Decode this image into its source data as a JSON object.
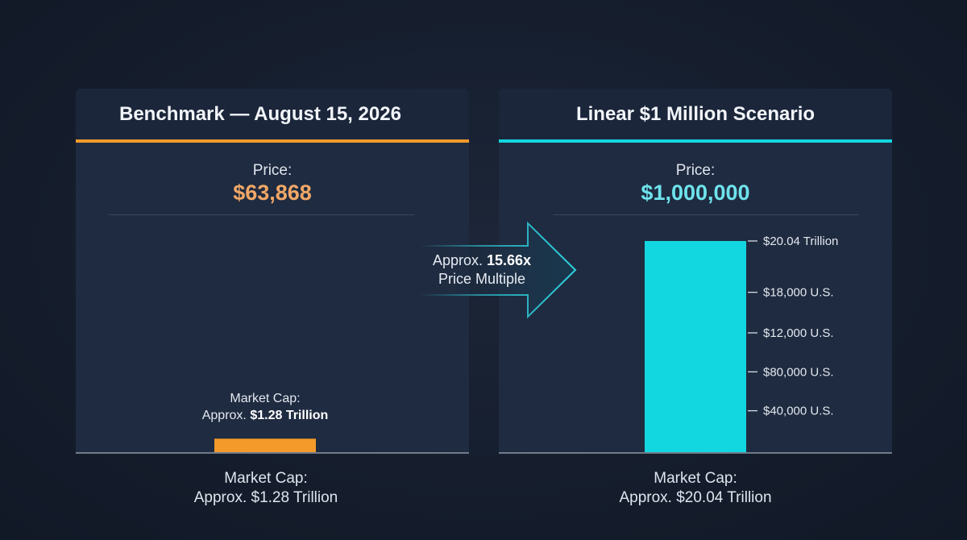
{
  "colors": {
    "background": "#141c2b",
    "panel": "#1f2b40",
    "orange": "#f39a2b",
    "orange_text": "#f0a766",
    "cyan": "#12d6e0",
    "cyan_text": "#6ee3ec"
  },
  "left_panel": {
    "title": "Benchmark — August 15, 2026",
    "price_label": "Price:",
    "price_value": "$63,868",
    "bar_label_line1": "Market Cap:",
    "bar_label_line2_prefix": "Approx. ",
    "bar_label_line2_bold": "$1.28 Trillion",
    "bottom_label_line1": "Market Cap:",
    "bottom_label_line2": "Approx. $1.28 Trillion"
  },
  "right_panel": {
    "title": "Linear $1 Million Scenario",
    "price_label": "Price:",
    "price_value": "$1,000,000",
    "bottom_label_line1": "Market Cap:",
    "bottom_label_line2": "Approx. $20.04 Trillion"
  },
  "arrow": {
    "line1_prefix": "Approx. ",
    "line1_bold": "15.66x",
    "line2": "Price Multiple"
  },
  "chart_data": [
    {
      "type": "bar",
      "categories": [
        "Benchmark — August 15, 2026"
      ],
      "values": [
        1.28
      ],
      "ylabel": "",
      "ylim": [
        0,
        20.04
      ]
    },
    {
      "type": "bar",
      "categories": [
        "Linear $1 Million Scenario"
      ],
      "values": [
        20.04
      ],
      "ylim": [
        0,
        20.04
      ],
      "ticks": [
        {
          "label": "$20.04 Trillion",
          "value": 20.04
        },
        {
          "label": "$18,000 U.S.",
          "value": 15.17
        },
        {
          "label": "$12,000 U.S.",
          "value": 11.32
        },
        {
          "label": "$80,000 U.S.",
          "value": 7.62
        },
        {
          "label": "$40,000 U.S.",
          "value": 3.93
        }
      ]
    }
  ]
}
